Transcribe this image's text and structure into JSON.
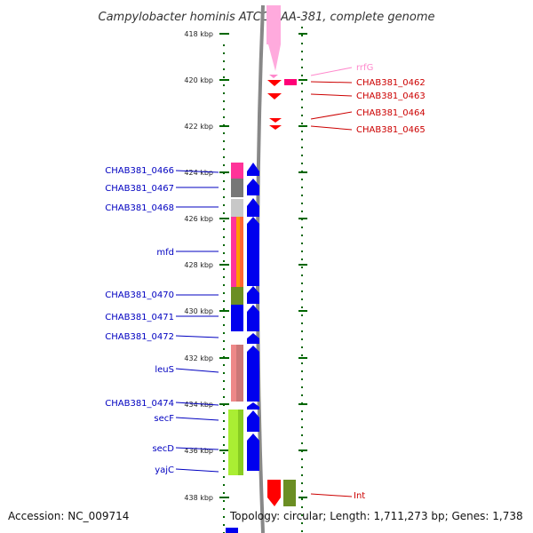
{
  "title": "Campylobacter hominis ATCC BAA-381, complete genome",
  "accession_text": "Accession: NC_009714",
  "topology_text": "Topology: circular; Length: 1,711,273 bp; Genes: 1,738",
  "ruler": {
    "unit": "kbp",
    "labels": [
      "418 kbp",
      "420 kbp",
      "422 kbp",
      "424 kbp",
      "426 kbp",
      "428 kbp",
      "430 kbp",
      "432 kbp",
      "434 kbp",
      "436 kbp",
      "438 kbp"
    ]
  },
  "colors": {
    "forward_label": "#0000c0",
    "reverse_label": "#cc0000",
    "rna_label": "#ff88cc",
    "backbone": "#888888",
    "tick": "#006600"
  },
  "genes_left": [
    {
      "name": "CHAB381_0466"
    },
    {
      "name": "CHAB381_0467"
    },
    {
      "name": "CHAB381_0468"
    },
    {
      "name": "mfd"
    },
    {
      "name": "CHAB381_0470"
    },
    {
      "name": "CHAB381_0471"
    },
    {
      "name": "CHAB381_0472"
    },
    {
      "name": "leuS"
    },
    {
      "name": "CHAB381_0474"
    },
    {
      "name": "secF"
    },
    {
      "name": "secD"
    },
    {
      "name": "yajC"
    }
  ],
  "genes_right": [
    {
      "name": "rrfG"
    },
    {
      "name": "CHAB381_0462"
    },
    {
      "name": "CHAB381_0463"
    },
    {
      "name": "CHAB381_0464"
    },
    {
      "name": "CHAB381_0465"
    },
    {
      "name": "Int"
    }
  ]
}
